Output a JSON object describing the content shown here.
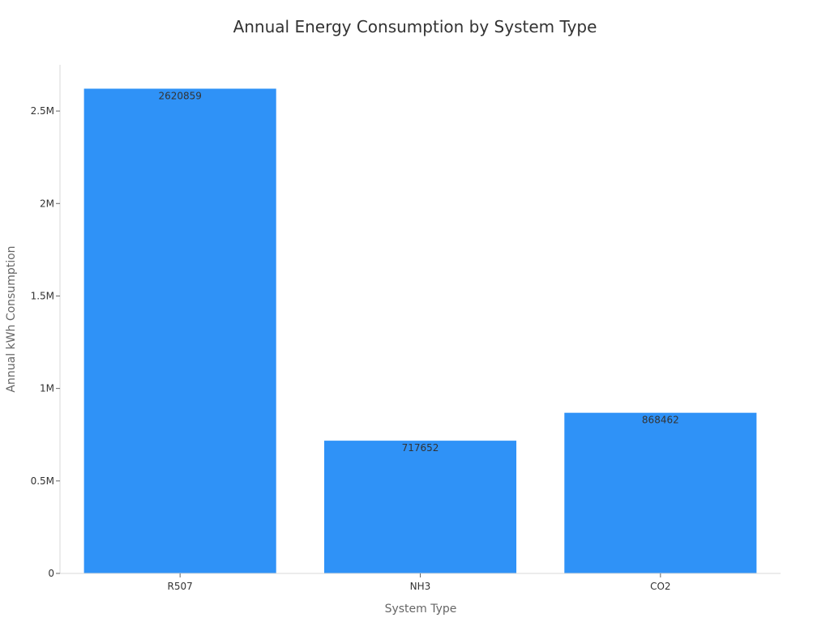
{
  "chart_data": {
    "type": "bar",
    "title": "Annual Energy Consumption by System Type",
    "xlabel": "System Type",
    "ylabel": "Annual kWh Consumption",
    "categories": [
      "R507",
      "NH3",
      "CO2"
    ],
    "values": [
      2620859,
      717652,
      868462
    ],
    "data_labels": [
      "2620859",
      "717652",
      "868462"
    ],
    "ylim": [
      0,
      2750000
    ],
    "yticks": [
      0,
      500000,
      1000000,
      1500000,
      2000000,
      2500000
    ],
    "ytick_labels": [
      "0",
      "0.5M",
      "1M",
      "1.5M",
      "2M",
      "2.5M"
    ],
    "bar_color": "#2f92f7",
    "grid": false,
    "legend": "none"
  }
}
